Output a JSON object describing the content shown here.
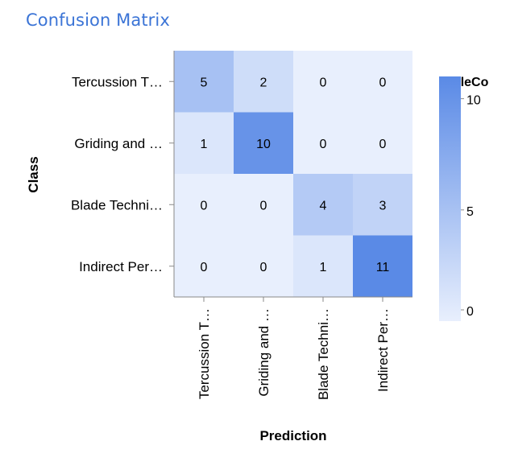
{
  "page": {
    "title": "Confusion Matrix"
  },
  "chart_data": {
    "type": "heatmap",
    "x_categories": [
      "Tercussion T…",
      "Griding and …",
      "Blade Techni…",
      "Indirect Per…"
    ],
    "y_categories": [
      "Tercussion T…",
      "Griding and …",
      "Blade Techni…",
      "Indirect Per…"
    ],
    "values": [
      [
        5,
        2,
        0,
        0
      ],
      [
        1,
        10,
        0,
        0
      ],
      [
        0,
        0,
        4,
        3
      ],
      [
        0,
        0,
        1,
        11
      ]
    ],
    "xlabel": "Prediction",
    "ylabel": "Class",
    "legend": {
      "title": "scaleCo",
      "ticks": [
        10,
        5,
        0
      ],
      "domain": [
        0,
        11
      ],
      "placement": "right"
    },
    "color_low": "#e8effd",
    "color_high": "#5a8ae6"
  }
}
